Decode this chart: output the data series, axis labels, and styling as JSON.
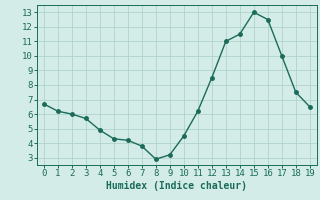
{
  "x": [
    0,
    1,
    2,
    3,
    4,
    5,
    6,
    7,
    8,
    9,
    10,
    11,
    12,
    13,
    14,
    15,
    16,
    17,
    18,
    19
  ],
  "y": [
    6.7,
    6.2,
    6.0,
    5.7,
    4.9,
    4.3,
    4.2,
    3.8,
    2.9,
    3.2,
    4.5,
    6.2,
    8.5,
    11.0,
    11.5,
    13.0,
    12.5,
    10.0,
    7.5,
    6.5
  ],
  "xlabel": "Humidex (Indice chaleur)",
  "ylim": [
    2.5,
    13.5
  ],
  "xlim": [
    -0.5,
    19.5
  ],
  "yticks": [
    3,
    4,
    5,
    6,
    7,
    8,
    9,
    10,
    11,
    12,
    13
  ],
  "xticks": [
    0,
    1,
    2,
    3,
    4,
    5,
    6,
    7,
    8,
    9,
    10,
    11,
    12,
    13,
    14,
    15,
    16,
    17,
    18,
    19
  ],
  "line_color": "#1a6b5a",
  "marker_color": "#1a6b5a",
  "bg_color": "#d4ece7",
  "grid_color": "#b0d4cc",
  "xlabel_fontsize": 7,
  "tick_fontsize": 6.5
}
